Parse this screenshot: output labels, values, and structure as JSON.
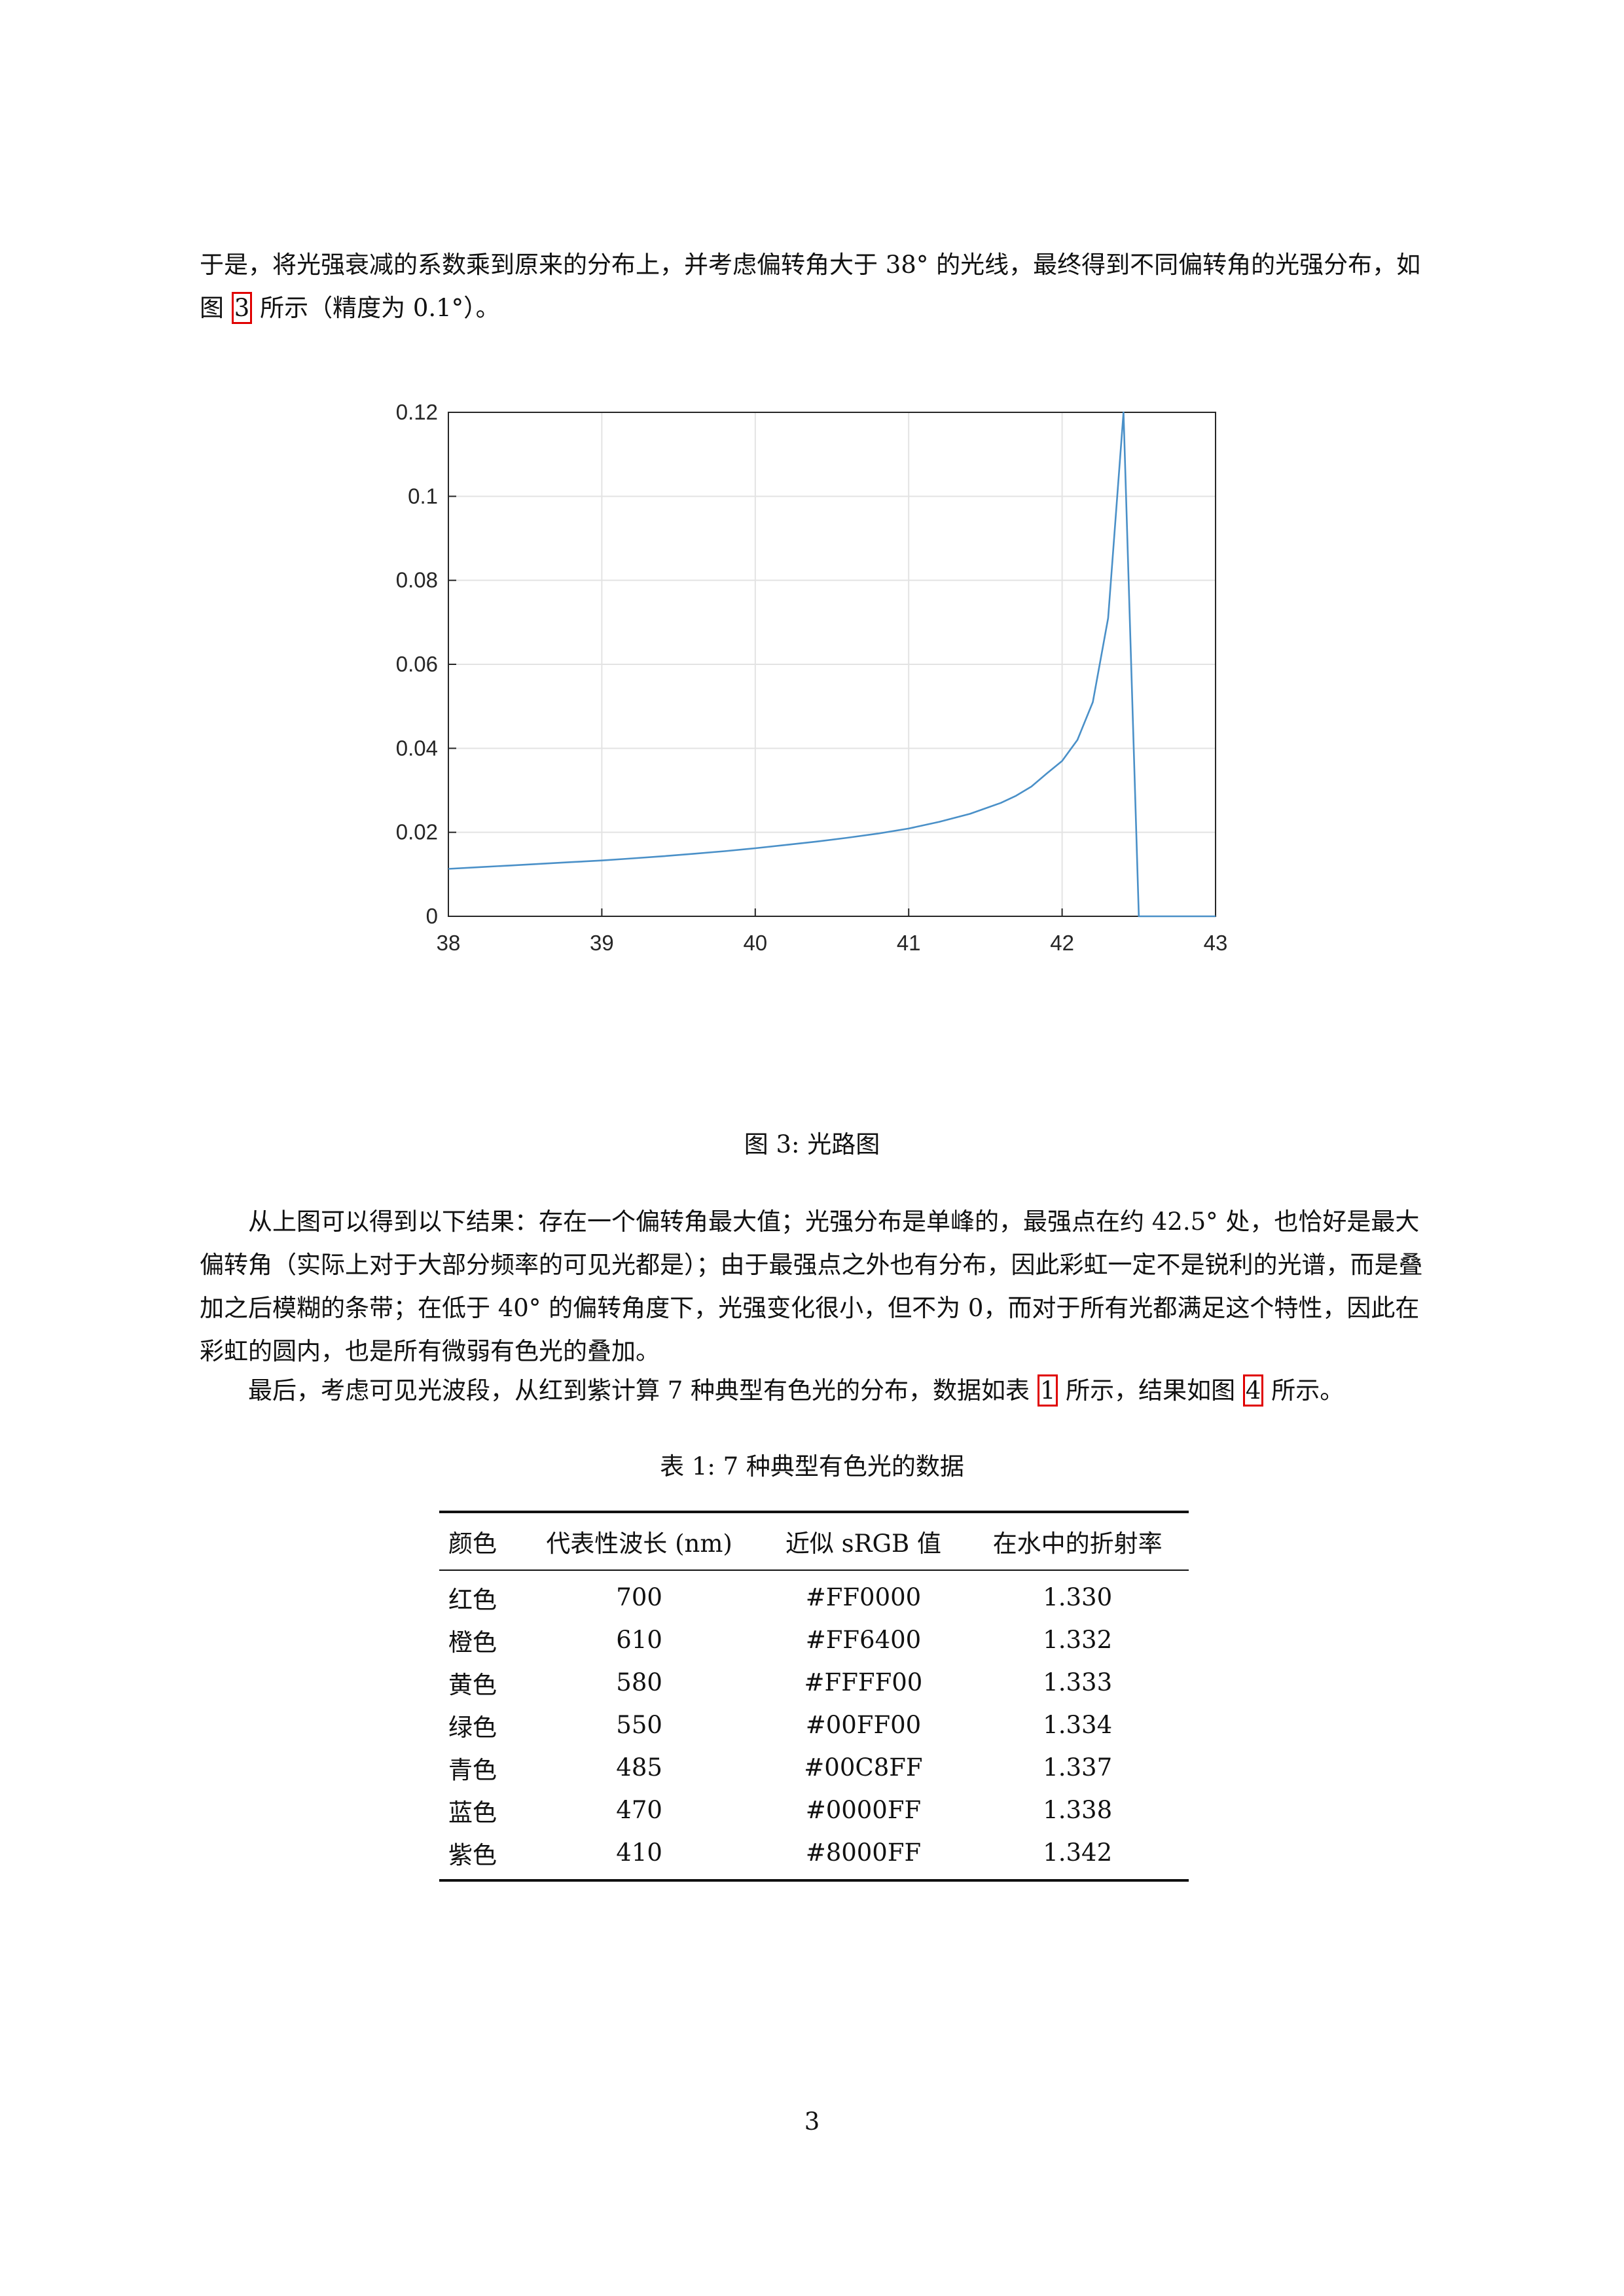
{
  "intro": {
    "before_ref": "于是，将光强衰减的系数乘到原来的分布上，并考虑偏转角大于 38° 的光线，最终得到不同偏转角的光强分布，如图 ",
    "ref": "3",
    "after_ref": " 所示（精度为 0.1°）。"
  },
  "figure_caption": "图 3: 光路图",
  "chart_data": {
    "type": "line",
    "title": "",
    "xlabel": "",
    "ylabel": "",
    "xlim": [
      38,
      43
    ],
    "ylim": [
      0,
      0.12
    ],
    "xticks": [
      "38",
      "39",
      "40",
      "41",
      "42",
      "43"
    ],
    "yticks": [
      "0",
      "0.02",
      "0.04",
      "0.06",
      "0.08",
      "0.1",
      "0.12"
    ],
    "grid": true,
    "color": "#4a90c8",
    "x": [
      38.0,
      38.2,
      38.4,
      38.6,
      38.8,
      39.0,
      39.2,
      39.4,
      39.6,
      39.8,
      40.0,
      40.2,
      40.4,
      40.6,
      40.8,
      41.0,
      41.2,
      41.4,
      41.6,
      41.7,
      41.8,
      41.9,
      42.0,
      42.1,
      42.2,
      42.3,
      42.4,
      42.5,
      42.6,
      43.0
    ],
    "y": [
      0.0113,
      0.0117,
      0.0121,
      0.0125,
      0.0129,
      0.0133,
      0.0138,
      0.0143,
      0.0149,
      0.0155,
      0.0162,
      0.017,
      0.0178,
      0.0187,
      0.0197,
      0.0209,
      0.0225,
      0.0244,
      0.027,
      0.0287,
      0.0309,
      0.034,
      0.037,
      0.042,
      0.051,
      0.071,
      0.12,
      0.0,
      0.0,
      0.0
    ]
  },
  "results": {
    "paragraph": "从上图可以得到以下结果：存在一个偏转角最大值；光强分布是单峰的，最强点在约 42.5° 处，也恰好是最大偏转角（实际上对于大部分频率的可见光都是）；由于最强点之外也有分布，因此彩虹一定不是锐利的光谱，而是叠加之后模糊的条带；在低于 40° 的偏转角度下，光强变化很小，但不为 0，而对于所有光都满足这个特性，因此在彩虹的圆内，也是所有微弱有色光的叠加。"
  },
  "last": {
    "part1": "最后，考虑可见光波段，从红到紫计算 7 种典型有色光的分布，数据如表 ",
    "ref1": "1",
    "part2": " 所示，结果如图 ",
    "ref2": "4",
    "part3": " 所示。"
  },
  "table_caption": "表 1: 7 种典型有色光的数据",
  "table": {
    "headers": [
      "颜色",
      "代表性波长 (nm)",
      "近似 sRGB 值",
      "在水中的折射率"
    ],
    "rows": [
      [
        "红色",
        "700",
        "#FF0000",
        "1.330"
      ],
      [
        "橙色",
        "610",
        "#FF6400",
        "1.332"
      ],
      [
        "黄色",
        "580",
        "#FFFF00",
        "1.333"
      ],
      [
        "绿色",
        "550",
        "#00FF00",
        "1.334"
      ],
      [
        "青色",
        "485",
        "#00C8FF",
        "1.337"
      ],
      [
        "蓝色",
        "470",
        "#0000FF",
        "1.338"
      ],
      [
        "紫色",
        "410",
        "#8000FF",
        "1.342"
      ]
    ]
  },
  "page_number": "3"
}
